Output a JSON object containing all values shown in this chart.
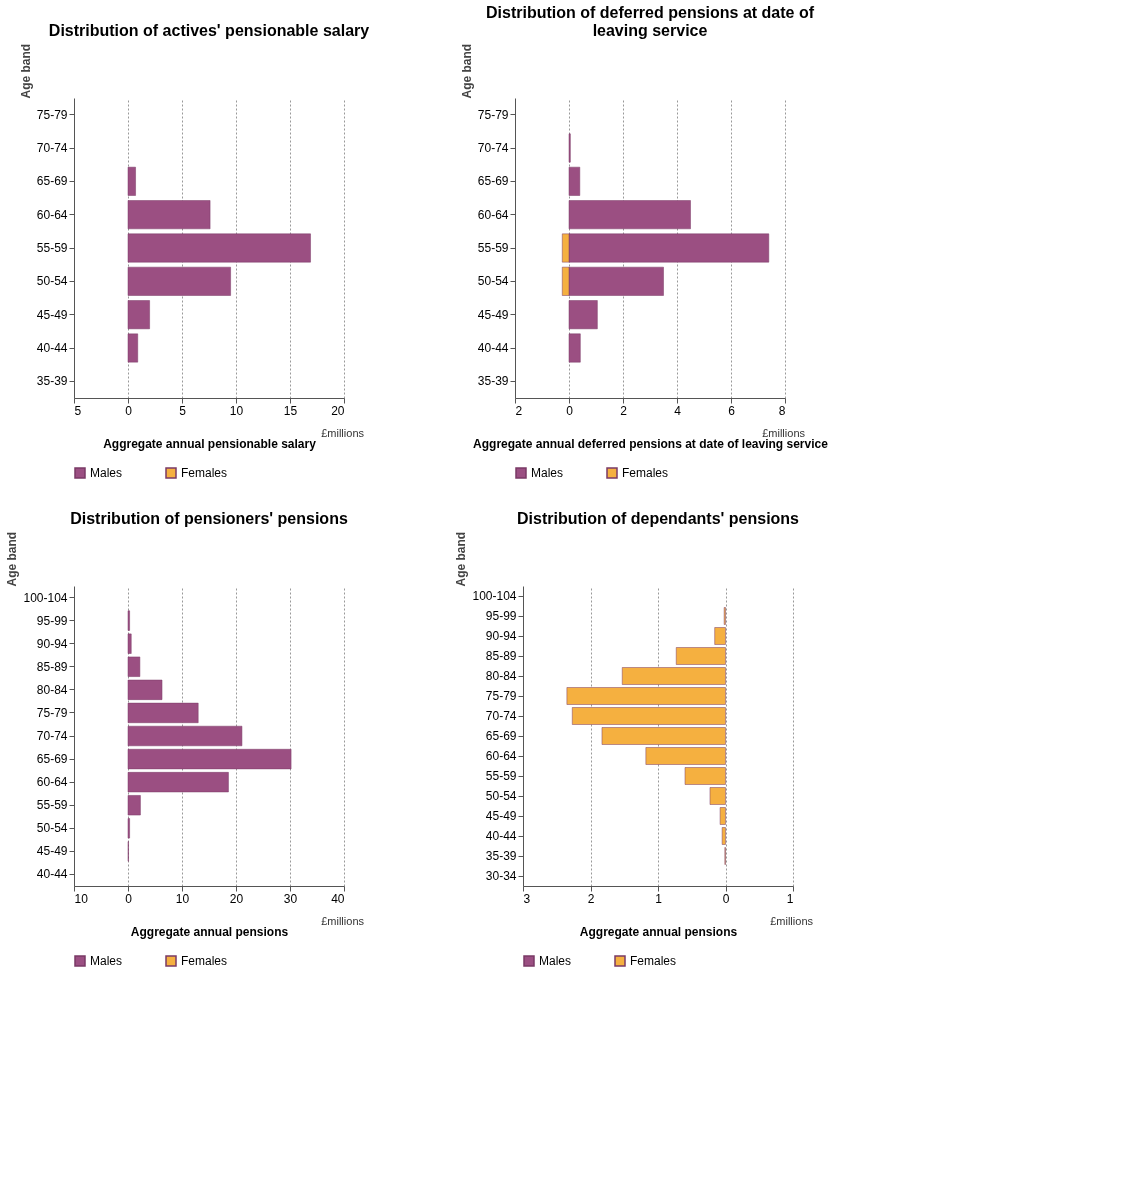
{
  "chart_data": [
    {
      "type": "bar",
      "orientation": "horizontal",
      "title": "Distribution of actives' pensionable salary",
      "xlabel": "Aggregate annual pensionable salary",
      "ylabel": "Age band",
      "annotations": [
        "£millions"
      ],
      "categories": [
        "75-79",
        "70-74",
        "65-69",
        "60-64",
        "55-59",
        "50-54",
        "45-49",
        "40-44",
        "35-39"
      ],
      "series": [
        {
          "name": "Males",
          "color": "#9b4f82",
          "values": [
            null,
            null,
            0.7,
            7.6,
            16.9,
            9.5,
            2.0,
            0.9,
            null
          ]
        },
        {
          "name": "Females",
          "color": "#f5b040",
          "values": [
            null,
            null,
            null,
            null,
            null,
            null,
            null,
            null,
            null
          ]
        }
      ],
      "xlim": [
        -5,
        20
      ],
      "xticks": [
        {
          "value": -5,
          "label": "5"
        },
        0,
        5,
        10,
        15,
        20
      ],
      "grid": "x",
      "legend": "bottom"
    },
    {
      "type": "bar",
      "orientation": "horizontal",
      "title": "Distribution of deferred pensions at date of leaving service",
      "xlabel": "Aggregate annual deferred pensions at date of leaving service",
      "ylabel": "Age band",
      "annotations": [
        "£millions"
      ],
      "categories": [
        "75-79",
        "70-74",
        "65-69",
        "60-64",
        "55-59",
        "50-54",
        "45-49",
        "40-44",
        "35-39"
      ],
      "series": [
        {
          "name": "Males",
          "color": "#9b4f82",
          "values": [
            null,
            0.05,
            0.4,
            4.5,
            7.4,
            3.5,
            1.05,
            0.42,
            null
          ]
        },
        {
          "name": "Females",
          "color": "#f5b040",
          "values": [
            null,
            null,
            null,
            null,
            -0.25,
            -0.25,
            null,
            null,
            null
          ]
        }
      ],
      "xlim": [
        -2,
        8
      ],
      "xticks": [
        {
          "value": -2,
          "label": "2"
        },
        0,
        2,
        4,
        6,
        8
      ],
      "grid": "x",
      "legend": "bottom"
    },
    {
      "type": "bar",
      "orientation": "horizontal",
      "title": "Distribution of pensioners' pensions",
      "xlabel": "Aggregate annual pensions",
      "ylabel": "Age band",
      "annotations": [
        "£millions"
      ],
      "categories": [
        "100-104",
        "95-99",
        "90-94",
        "85-89",
        "80-84",
        "75-79",
        "70-74",
        "65-69",
        "60-64",
        "55-59",
        "50-54",
        "45-49",
        "40-44"
      ],
      "series": [
        {
          "name": "Males",
          "color": "#9b4f82",
          "values": [
            null,
            0.3,
            0.6,
            2.2,
            6.3,
            13,
            21.1,
            30.2,
            18.6,
            2.3,
            0.3,
            0.1,
            null
          ]
        },
        {
          "name": "Females",
          "color": "#f5b040",
          "values": [
            null,
            null,
            null,
            null,
            null,
            null,
            null,
            null,
            null,
            null,
            null,
            null,
            null
          ]
        }
      ],
      "xlim": [
        -10,
        40
      ],
      "xticks": [
        {
          "value": -10,
          "label": "10"
        },
        0,
        10,
        20,
        30,
        40
      ],
      "grid": "x",
      "legend": "bottom"
    },
    {
      "type": "bar",
      "orientation": "horizontal",
      "title": "Distribution of dependants' pensions",
      "xlabel": "Aggregate annual pensions",
      "ylabel": "Age band",
      "annotations": [
        "£millions"
      ],
      "categories": [
        "100-104",
        "95-99",
        "90-94",
        "85-89",
        "80-84",
        "75-79",
        "70-74",
        "65-69",
        "60-64",
        "55-59",
        "50-54",
        "45-49",
        "40-44",
        "35-39",
        "30-34"
      ],
      "series": [
        {
          "name": "Males",
          "color": "#9b4f82",
          "values": [
            null,
            null,
            null,
            null,
            null,
            null,
            null,
            null,
            null,
            null,
            null,
            null,
            null,
            null,
            null
          ]
        },
        {
          "name": "Females",
          "color": "#f5b040",
          "values": [
            null,
            -0.02,
            -0.16,
            -0.73,
            -1.53,
            -2.35,
            -2.27,
            -1.83,
            -1.18,
            -0.6,
            -0.23,
            -0.08,
            -0.05,
            -0.01,
            null
          ]
        }
      ],
      "xlim": [
        -3,
        1
      ],
      "xticks": [
        {
          "value": -3,
          "label": "3"
        },
        {
          "value": -2,
          "label": "2"
        },
        {
          "value": -1,
          "label": "1"
        },
        0,
        1
      ],
      "grid": "x",
      "legend": "bottom"
    }
  ]
}
